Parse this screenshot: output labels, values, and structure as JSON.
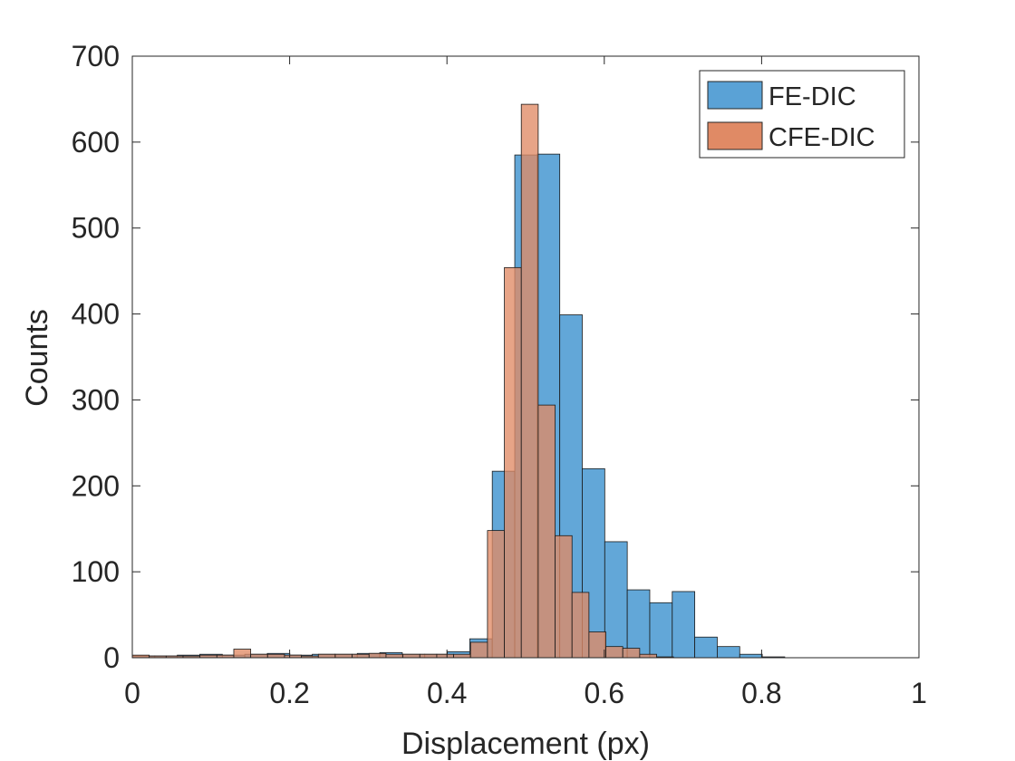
{
  "chart_data": {
    "type": "bar",
    "subtype": "overlapping-histogram",
    "title": "",
    "xlabel": "Displacement (px)",
    "ylabel": "Counts",
    "xlim": [
      0,
      1
    ],
    "ylim": [
      0,
      700
    ],
    "xticks": [
      0,
      0.2,
      0.4,
      0.6,
      0.8,
      1
    ],
    "xtick_labels": [
      "0",
      "0.2",
      "0.4",
      "0.6",
      "0.8",
      "1"
    ],
    "yticks": [
      0,
      100,
      200,
      300,
      400,
      500,
      600,
      700
    ],
    "ytick_labels": [
      "0",
      "100",
      "200",
      "300",
      "400",
      "500",
      "600",
      "700"
    ],
    "legend_position": "top-right",
    "series": [
      {
        "name": "FE-DIC",
        "color": "#5aa2d6",
        "edges": [
          0.0,
          0.0286,
          0.0572,
          0.0858,
          0.1144,
          0.143,
          0.1716,
          0.2002,
          0.2288,
          0.2574,
          0.286,
          0.3146,
          0.3432,
          0.3718,
          0.4004,
          0.429,
          0.4576,
          0.4862,
          0.5148,
          0.5434,
          0.572,
          0.6006,
          0.6292,
          0.6578,
          0.6864,
          0.715,
          0.7436,
          0.7722,
          0.8008,
          0.8294
        ],
        "values": [
          2,
          2,
          3,
          4,
          3,
          4,
          5,
          3,
          4,
          4,
          5,
          6,
          4,
          4,
          7,
          22,
          217,
          585,
          586,
          399,
          220,
          135,
          79,
          64,
          77,
          24,
          13,
          4,
          1
        ]
      },
      {
        "name": "CFE-DIC",
        "color": "#e08a65",
        "edges": [
          0.0,
          0.0215,
          0.043,
          0.0645,
          0.086,
          0.1075,
          0.129,
          0.1505,
          0.172,
          0.1935,
          0.215,
          0.2365,
          0.258,
          0.2795,
          0.301,
          0.3225,
          0.344,
          0.3655,
          0.387,
          0.4085,
          0.43,
          0.4515,
          0.473,
          0.4945,
          0.516,
          0.5375,
          0.559,
          0.5805,
          0.602,
          0.6235,
          0.645,
          0.6665,
          0.688
        ],
        "values": [
          3,
          2,
          2,
          2,
          3,
          3,
          10,
          4,
          4,
          3,
          2,
          4,
          4,
          4,
          5,
          4,
          4,
          4,
          4,
          4,
          18,
          148,
          454,
          644,
          294,
          142,
          76,
          30,
          13,
          11,
          4,
          1
        ]
      }
    ]
  }
}
